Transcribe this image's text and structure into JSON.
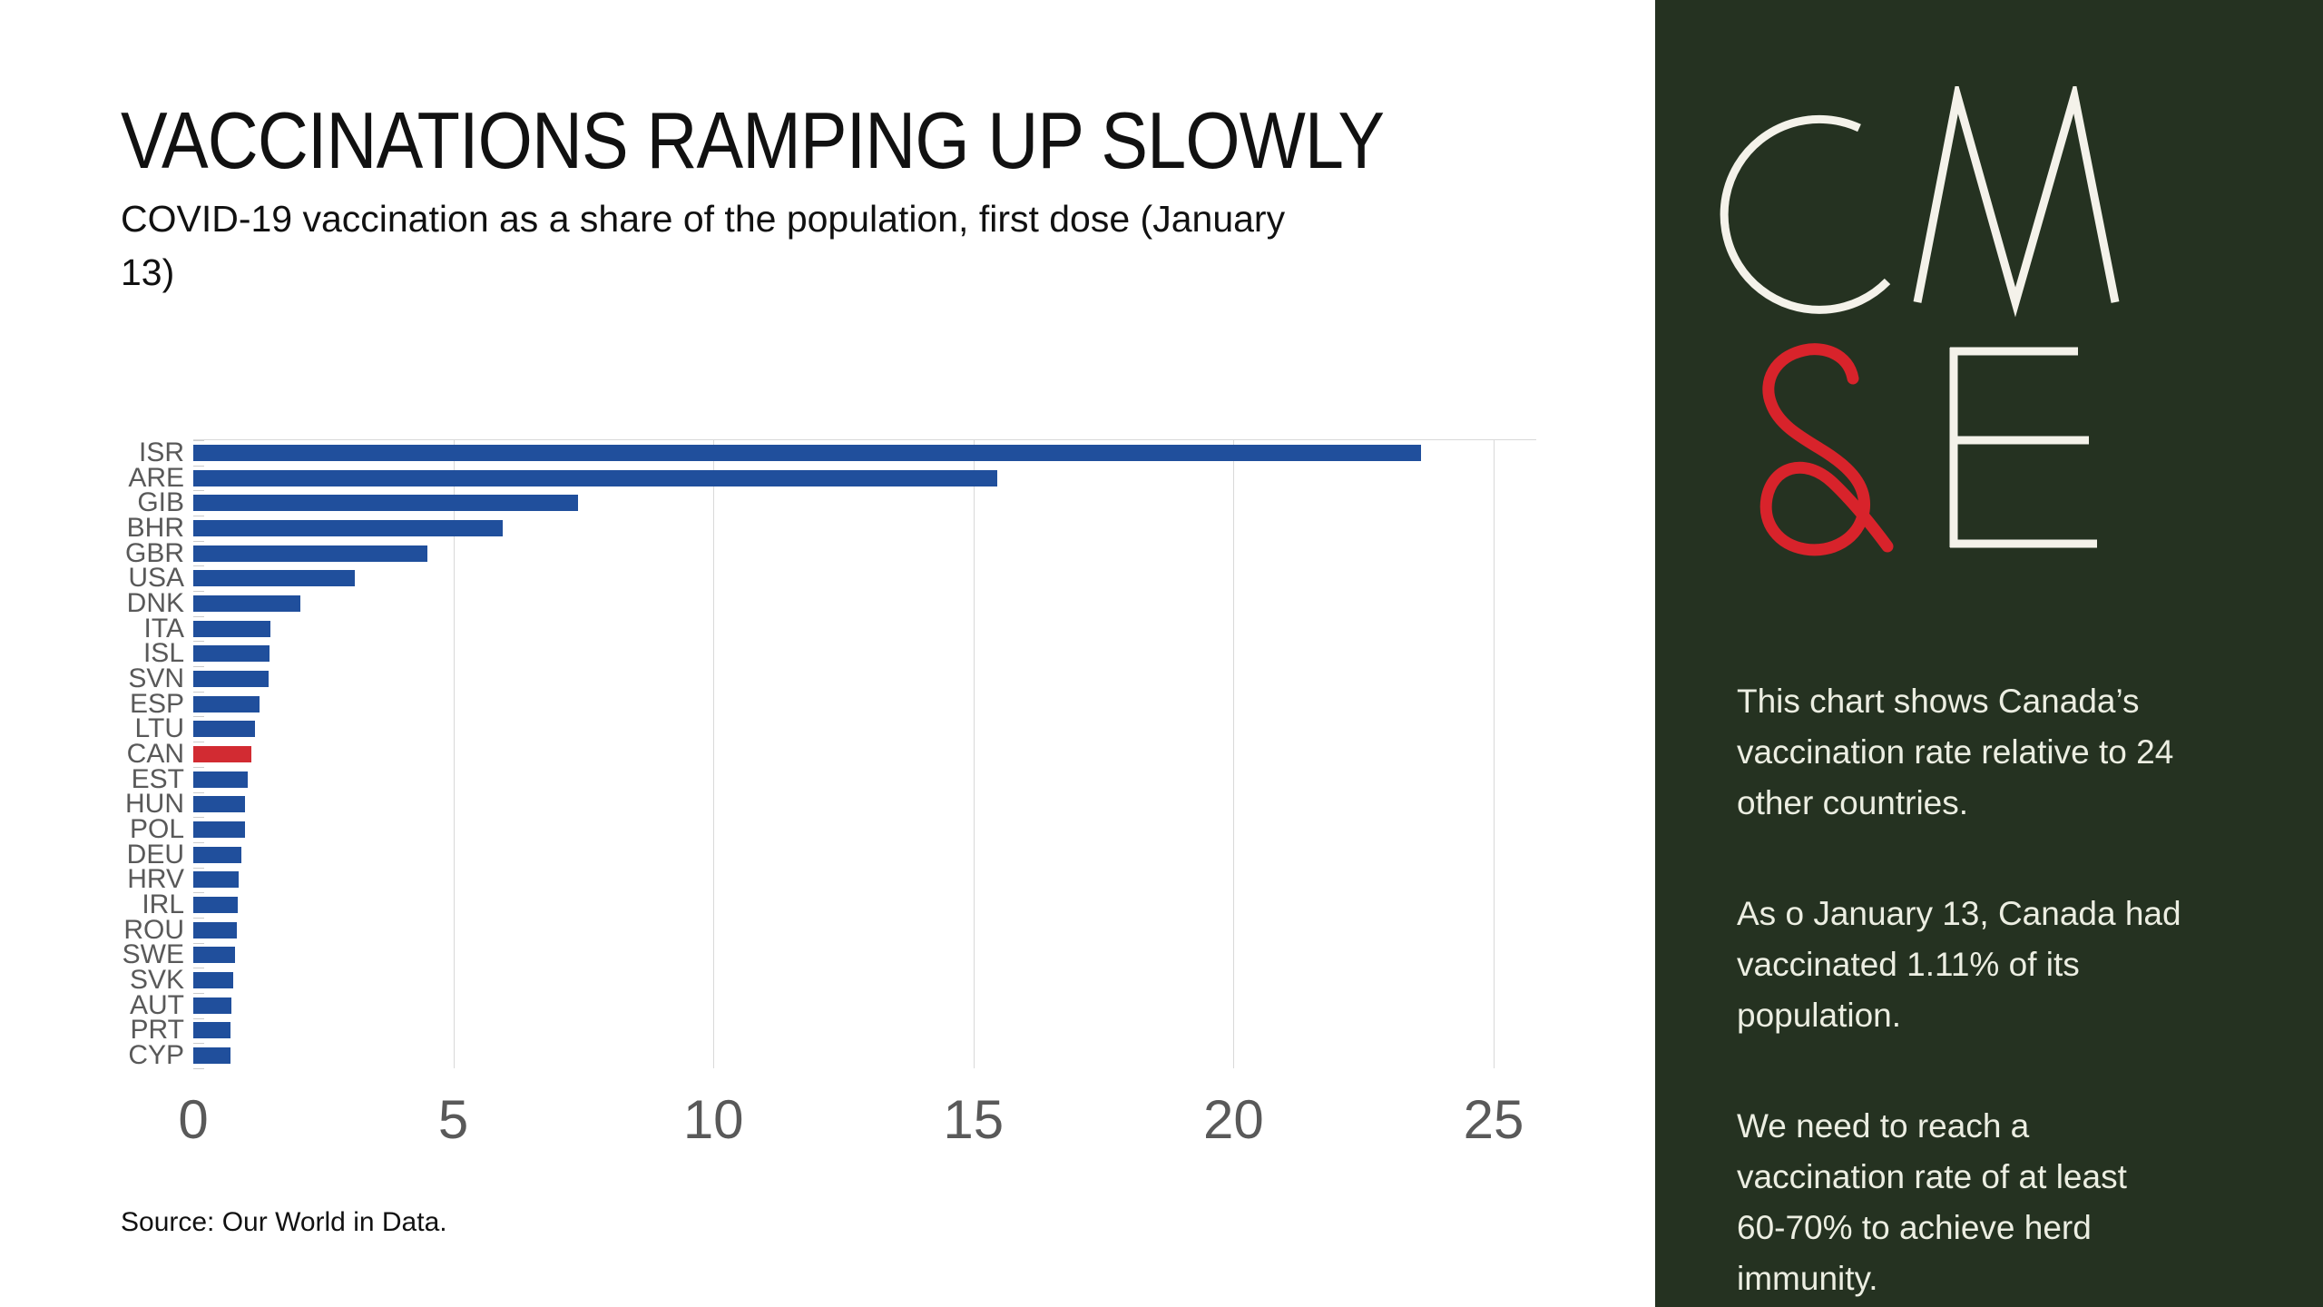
{
  "main": {
    "title": "VACCINATIONS RAMPING UP SLOWLY",
    "subtitle": "COVID-19 vaccination as a share of the population, first dose (January\n13)",
    "source": "Source: Our World in Data."
  },
  "sidebar": {
    "background_color": "#253221",
    "text_color": "#eceee2",
    "logo_text": "CM&E",
    "logo": {
      "line1": "CM",
      "line2": "&E",
      "letter_color": "#f4f2ea",
      "ampersand_color": "#d8232b"
    },
    "paragraphs": [
      "This chart shows Canada’s\nvaccination rate relative to 24\nother countries.",
      "As o January 13, Canada had\nvaccinated 1.11% of its\npopulation.",
      "We need to reach a\nvaccination rate of at least\n60-70% to achieve herd\nimmunity."
    ]
  },
  "chart_data": {
    "type": "bar",
    "orientation": "horizontal",
    "title": "VACCINATIONS RAMPING UP SLOWLY",
    "subtitle": "COVID-19 vaccination as a share of the population, first dose (January 13)",
    "xlabel": "",
    "ylabel": "",
    "xlim": [
      0,
      25.8
    ],
    "x_ticks": [
      0,
      5,
      10,
      15,
      20,
      25
    ],
    "grid": "vertical",
    "legend": "none",
    "categories": [
      "ISR",
      "ARE",
      "GIB",
      "BHR",
      "GBR",
      "USA",
      "DNK",
      "ITA",
      "ISL",
      "SVN",
      "ESP",
      "LTU",
      "CAN",
      "EST",
      "HUN",
      "POL",
      "DEU",
      "HRV",
      "IRL",
      "ROU",
      "SWE",
      "SVK",
      "AUT",
      "PRT",
      "CYP"
    ],
    "values": [
      23.6,
      15.45,
      7.4,
      5.95,
      4.5,
      3.1,
      2.05,
      1.48,
      1.46,
      1.44,
      1.28,
      1.18,
      1.11,
      1.05,
      1.0,
      0.99,
      0.93,
      0.87,
      0.85,
      0.84,
      0.81,
      0.76,
      0.73,
      0.71,
      0.71
    ],
    "bar_color": "#204f9c",
    "highlight_category": "CAN",
    "highlight_value": 1.11,
    "highlight_color": "#d22b32",
    "label_color": "#595959",
    "gridline_color": "#d9d9d9"
  }
}
